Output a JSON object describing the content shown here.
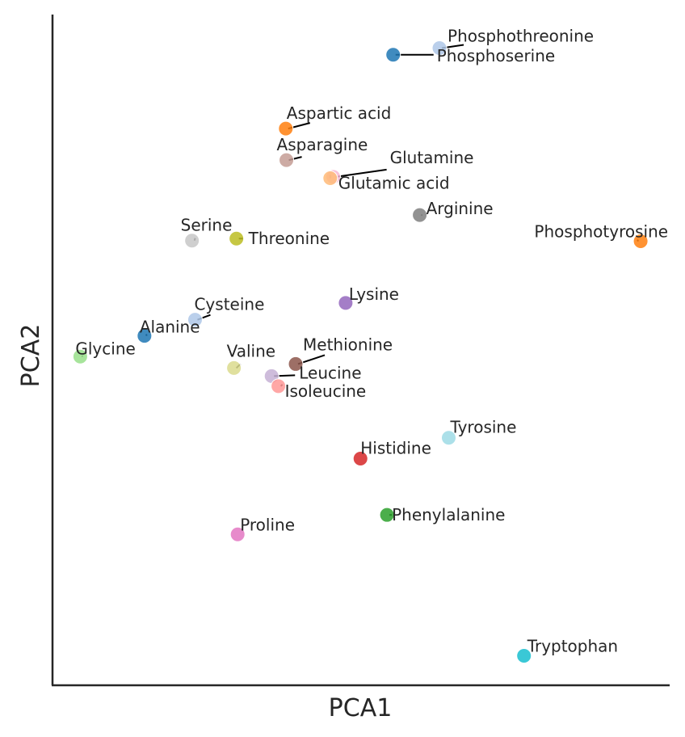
{
  "chart_data": {
    "type": "scatter",
    "xlabel": "PCA1",
    "ylabel": "PCA2",
    "xlim": [
      0,
      100
    ],
    "ylim": [
      0,
      100
    ],
    "grid": false,
    "points": [
      {
        "label": "Phosphothreonine",
        "x": 62.7,
        "y": 95.0,
        "color": "#aec7e8"
      },
      {
        "label": "Phosphoserine",
        "x": 55.2,
        "y": 94.0,
        "color": "#1f77b4"
      },
      {
        "label": "Aspartic acid",
        "x": 37.8,
        "y": 83.0,
        "color": "#ff7f0e"
      },
      {
        "label": "Asparagine",
        "x": 37.9,
        "y": 78.3,
        "color": "#c49c94"
      },
      {
        "label": "Glutamine",
        "x": 45.5,
        "y": 75.8,
        "color": "#f7b6d2"
      },
      {
        "label": "Glutamic acid",
        "x": 45.0,
        "y": 75.6,
        "color": "#ffbb78"
      },
      {
        "label": "Arginine",
        "x": 59.5,
        "y": 70.1,
        "color": "#7f7f7f"
      },
      {
        "label": "Phosphotyrosine",
        "x": 95.3,
        "y": 66.2,
        "color": "#ff7f0e"
      },
      {
        "label": "Serine",
        "x": 22.6,
        "y": 66.3,
        "color": "#c7c7c7"
      },
      {
        "label": "Threonine",
        "x": 29.8,
        "y": 66.6,
        "color": "#bcbd22"
      },
      {
        "label": "Lysine",
        "x": 47.5,
        "y": 57.0,
        "color": "#9467bd"
      },
      {
        "label": "Cysteine",
        "x": 23.1,
        "y": 54.5,
        "color": "#aec7e8"
      },
      {
        "label": "Alanine",
        "x": 14.9,
        "y": 52.1,
        "color": "#1f77b4"
      },
      {
        "label": "Glycine",
        "x": 4.5,
        "y": 49.0,
        "color": "#98df8a"
      },
      {
        "label": "Methionine",
        "x": 39.4,
        "y": 47.9,
        "color": "#8c564b"
      },
      {
        "label": "Valine",
        "x": 29.4,
        "y": 47.3,
        "color": "#dbdb8d"
      },
      {
        "label": "Leucine",
        "x": 35.5,
        "y": 46.1,
        "color": "#c5b0d5"
      },
      {
        "label": "Isoleucine",
        "x": 36.6,
        "y": 44.6,
        "color": "#ff9896"
      },
      {
        "label": "Tyrosine",
        "x": 64.2,
        "y": 36.9,
        "color": "#9edae5"
      },
      {
        "label": "Histidine",
        "x": 49.9,
        "y": 33.8,
        "color": "#d62728"
      },
      {
        "label": "Phenylalanine",
        "x": 54.2,
        "y": 25.4,
        "color": "#2ca02c"
      },
      {
        "label": "Proline",
        "x": 30.0,
        "y": 22.5,
        "color": "#e377c2"
      },
      {
        "label": "Tryptophan",
        "x": 76.4,
        "y": 4.4,
        "color": "#17becf"
      }
    ]
  }
}
